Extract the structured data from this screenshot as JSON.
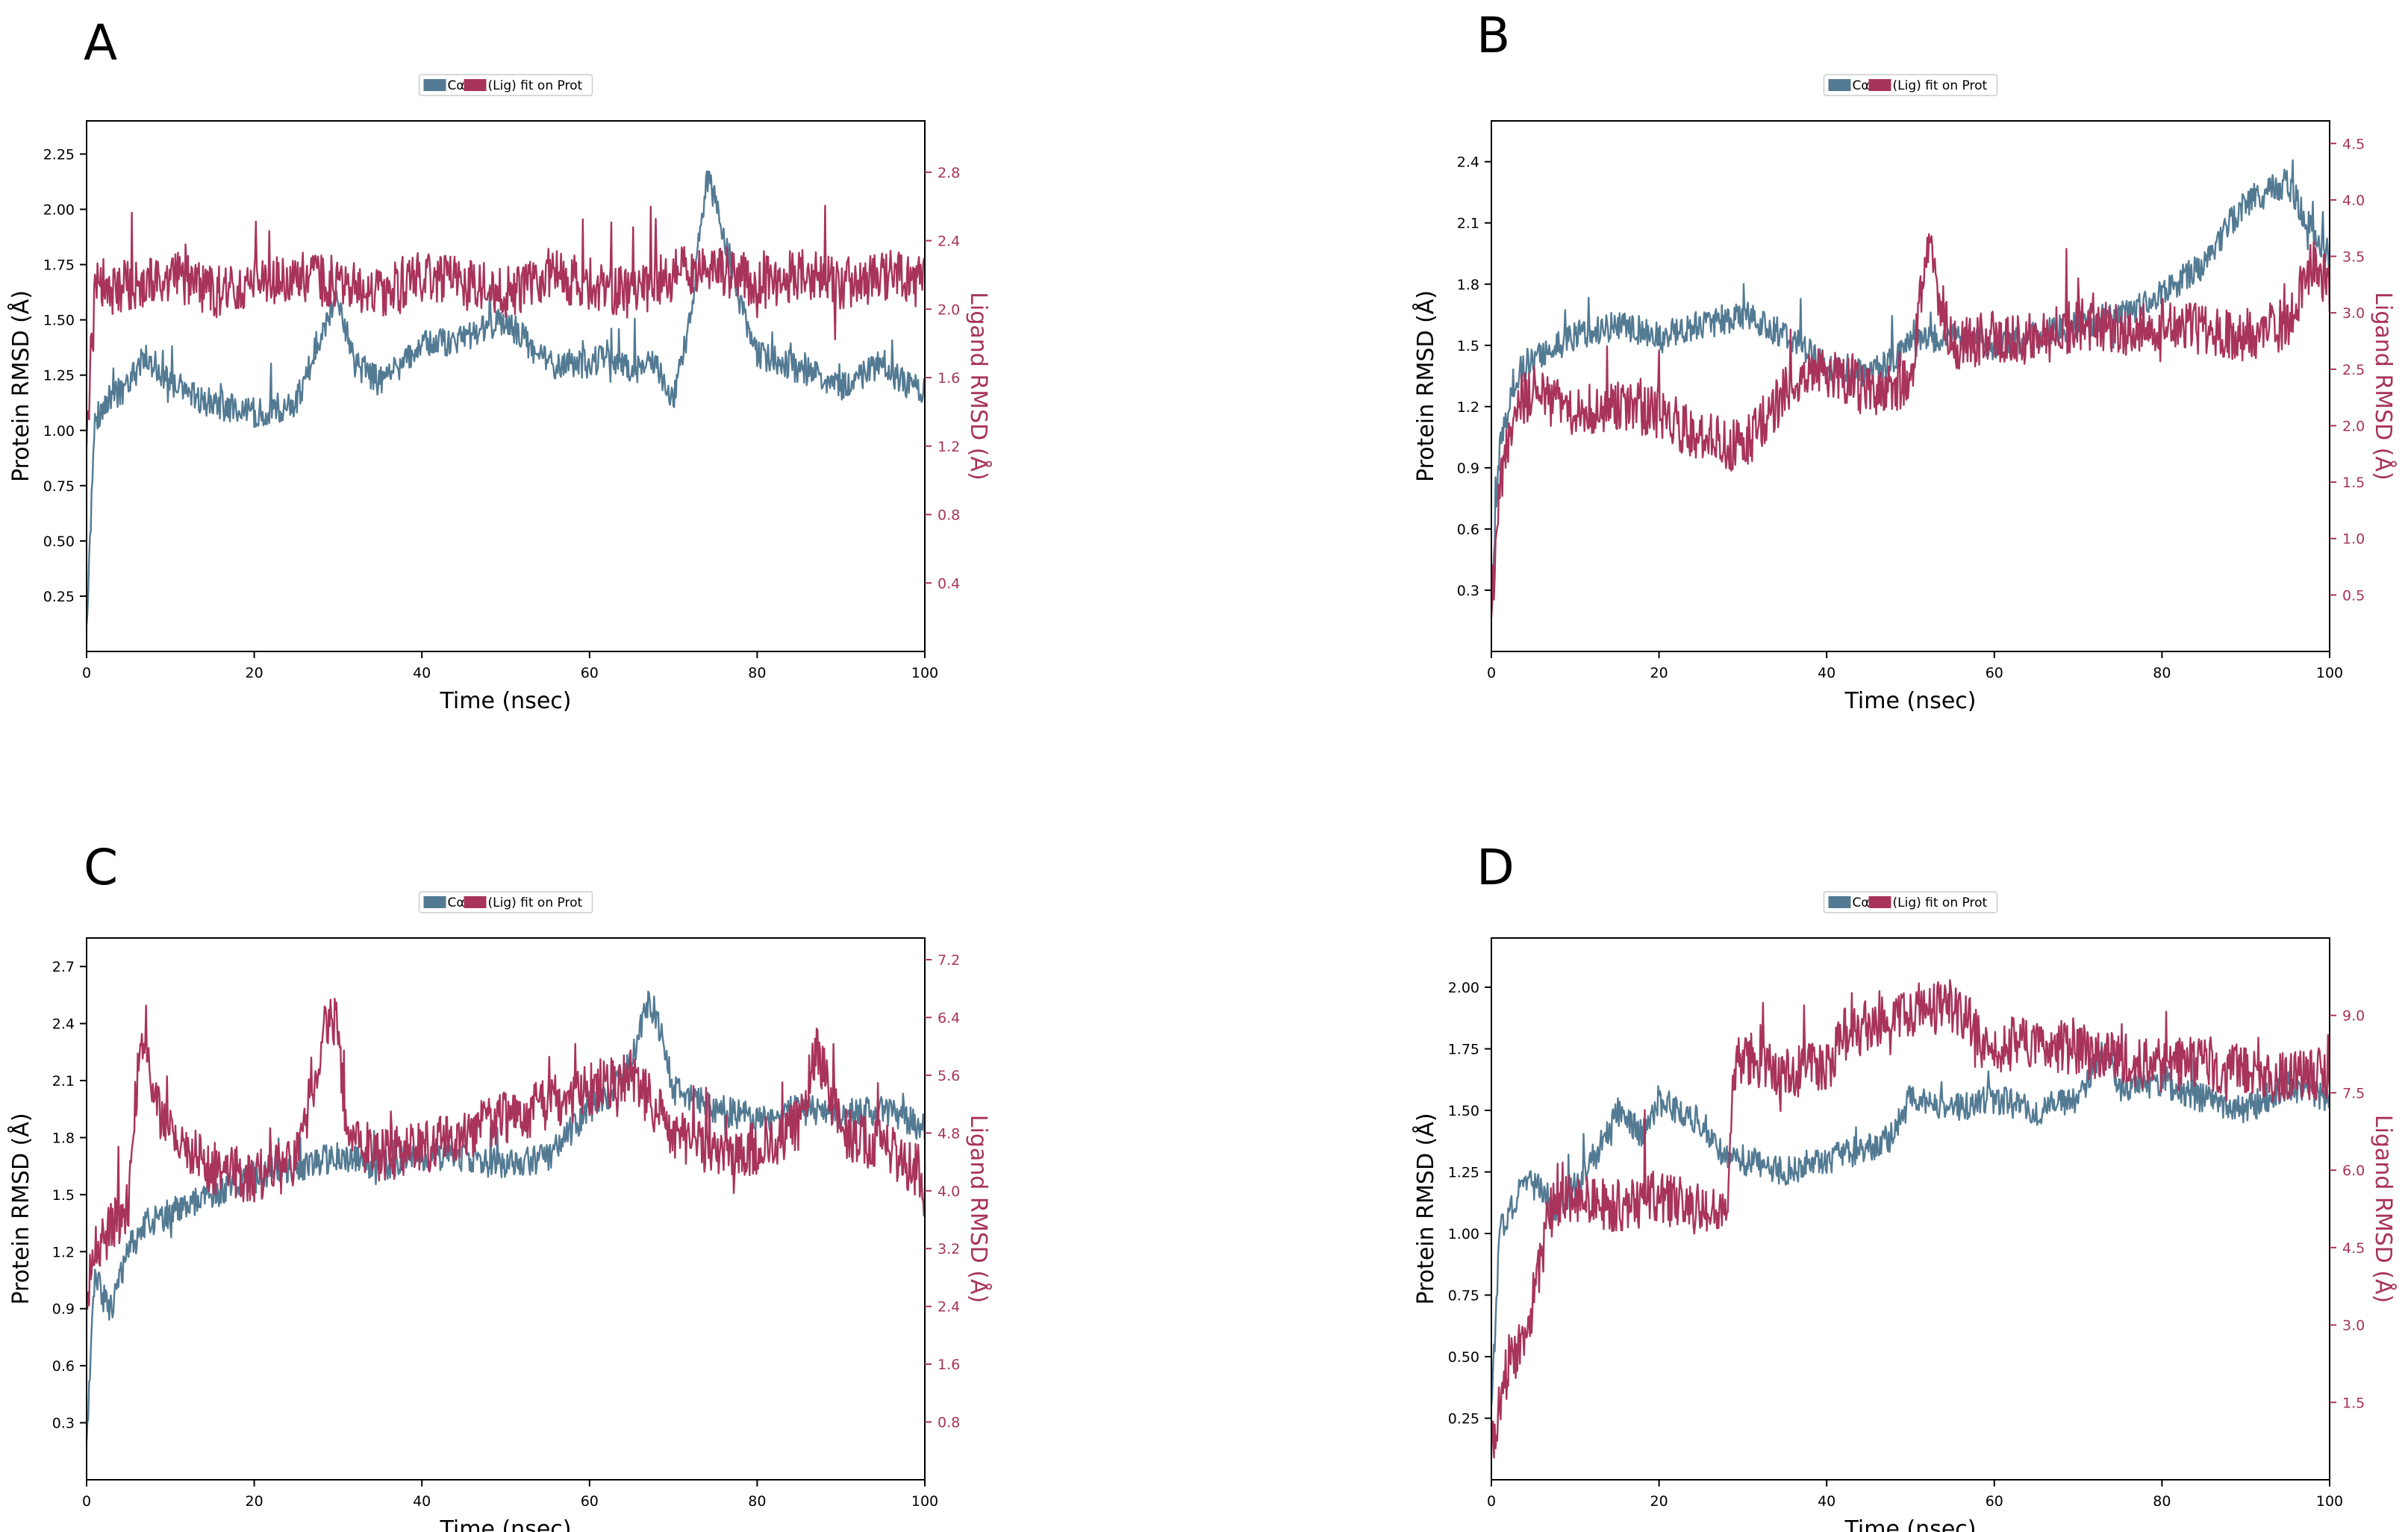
{
  "colors": {
    "protein": "#537a93",
    "ligand": "#a8335b",
    "ligand_text": "#a8335b"
  },
  "chart_data": [
    {
      "panel": "A",
      "type": "line",
      "legend": {
        "entries": [
          "Cα",
          "(Lig) fit on Prot"
        ],
        "placement": "top-center"
      },
      "xlabel": "Time (nsec)",
      "ylabel_left": "Protein RMSD (Å)",
      "ylabel_right": "Ligand RMSD (Å)",
      "xlim": [
        0,
        100
      ],
      "ylim_left": [
        0.0,
        2.4
      ],
      "ylim_right": [
        0.0,
        3.1
      ],
      "x_ticks": [
        0,
        20,
        40,
        60,
        80,
        100
      ],
      "y_ticks_left": [
        0.25,
        0.5,
        0.75,
        1.0,
        1.25,
        1.5,
        1.75,
        2.0,
        2.25
      ],
      "y_ticks_left_labels": [
        "0.25",
        "0.50",
        "0.75",
        "1.00",
        "1.25",
        "1.50",
        "1.75",
        "2.00",
        "2.25"
      ],
      "y_ticks_right": [
        0.4,
        0.8,
        1.2,
        1.6,
        2.0,
        2.4,
        2.8
      ],
      "y_ticks_right_labels": [
        "0.4",
        "0.8",
        "1.2",
        "1.6",
        "2.0",
        "2.4",
        "2.8"
      ],
      "series": [
        {
          "name": "Cα",
          "axis": "left",
          "x": [
            0,
            1,
            3,
            5,
            7,
            10,
            15,
            20,
            25,
            28,
            30,
            32,
            35,
            40,
            45,
            50,
            55,
            60,
            62,
            65,
            68,
            70,
            72,
            74,
            75,
            77,
            80,
            85,
            90,
            95,
            98,
            100
          ],
          "y": [
            0.12,
            1.05,
            1.15,
            1.2,
            1.35,
            1.2,
            1.12,
            1.08,
            1.12,
            1.45,
            1.6,
            1.3,
            1.22,
            1.38,
            1.42,
            1.5,
            1.3,
            1.3,
            1.35,
            1.28,
            1.3,
            1.15,
            1.5,
            2.15,
            2.05,
            1.7,
            1.35,
            1.28,
            1.2,
            1.3,
            1.2,
            1.18
          ]
        },
        {
          "name": "(Lig) fit on Prot",
          "axis": "right",
          "x": [
            0,
            1,
            3,
            5,
            10,
            15,
            20,
            25,
            30,
            35,
            40,
            45,
            50,
            55,
            60,
            65,
            70,
            75,
            80,
            85,
            90,
            95,
            100
          ],
          "y": [
            1.2,
            2.2,
            2.1,
            2.15,
            2.2,
            2.1,
            2.15,
            2.2,
            2.15,
            2.1,
            2.2,
            2.15,
            2.1,
            2.2,
            2.15,
            2.1,
            2.2,
            2.25,
            2.15,
            2.2,
            2.15,
            2.2,
            2.15
          ]
        }
      ]
    },
    {
      "panel": "B",
      "type": "line",
      "legend": {
        "entries": [
          "Cα",
          "(Lig) fit on Prot"
        ],
        "placement": "top-center"
      },
      "xlabel": "Time (nsec)",
      "ylabel_left": "Protein RMSD (Å)",
      "ylabel_right": "Ligand RMSD (Å)",
      "xlim": [
        0,
        100
      ],
      "ylim_left": [
        0.0,
        2.6
      ],
      "ylim_right": [
        0.0,
        4.7
      ],
      "x_ticks": [
        0,
        20,
        40,
        60,
        80,
        100
      ],
      "y_ticks_left": [
        0.3,
        0.6,
        0.9,
        1.2,
        1.5,
        1.8,
        2.1,
        2.4
      ],
      "y_ticks_left_labels": [
        "0.3",
        "0.6",
        "0.9",
        "1.2",
        "1.5",
        "1.8",
        "2.1",
        "2.4"
      ],
      "y_ticks_right": [
        0.5,
        1.0,
        1.5,
        2.0,
        2.5,
        3.0,
        3.5,
        4.0,
        4.5
      ],
      "y_ticks_right_labels": [
        "0.5",
        "1.0",
        "1.5",
        "2.0",
        "2.5",
        "3.0",
        "3.5",
        "4.0",
        "4.5"
      ],
      "series": [
        {
          "name": "Cα",
          "axis": "left",
          "x": [
            0,
            1,
            3,
            5,
            8,
            10,
            15,
            20,
            25,
            30,
            35,
            40,
            45,
            50,
            55,
            60,
            65,
            70,
            75,
            80,
            85,
            88,
            90,
            95,
            98,
            100
          ],
          "y": [
            0.2,
            1.0,
            1.35,
            1.45,
            1.5,
            1.55,
            1.6,
            1.55,
            1.6,
            1.65,
            1.55,
            1.4,
            1.35,
            1.5,
            1.55,
            1.5,
            1.55,
            1.6,
            1.65,
            1.75,
            1.9,
            2.1,
            2.2,
            2.3,
            2.05,
            1.95
          ]
        },
        {
          "name": "(Lig) fit on Prot",
          "axis": "right",
          "x": [
            0,
            1,
            3,
            5,
            10,
            15,
            20,
            25,
            30,
            35,
            40,
            45,
            50,
            52,
            55,
            60,
            65,
            70,
            75,
            80,
            85,
            90,
            95,
            98,
            100
          ],
          "y": [
            0.3,
            1.5,
            2.2,
            2.3,
            2.1,
            2.2,
            2.1,
            1.9,
            1.8,
            2.3,
            2.5,
            2.3,
            2.4,
            3.6,
            2.7,
            2.8,
            2.75,
            2.9,
            2.85,
            2.9,
            2.85,
            2.8,
            2.9,
            3.5,
            3.2
          ]
        }
      ]
    },
    {
      "panel": "C",
      "type": "line",
      "legend": {
        "entries": [
          "Cα",
          "(Lig) fit on Prot"
        ],
        "placement": "top-center"
      },
      "xlabel": "Time (nsec)",
      "ylabel_left": "Protein RMSD (Å)",
      "ylabel_right": "Ligand RMSD (Å)",
      "xlim": [
        0,
        100
      ],
      "ylim_left": [
        0.0,
        2.85
      ],
      "ylim_right": [
        0.0,
        7.5
      ],
      "x_ticks": [
        0,
        20,
        40,
        60,
        80,
        100
      ],
      "y_ticks_left": [
        0.3,
        0.6,
        0.9,
        1.2,
        1.5,
        1.8,
        2.1,
        2.4,
        2.7
      ],
      "y_ticks_left_labels": [
        "0.3",
        "0.6",
        "0.9",
        "1.2",
        "1.5",
        "1.8",
        "2.1",
        "2.4",
        "2.7"
      ],
      "y_ticks_right": [
        0.8,
        1.6,
        2.4,
        3.2,
        4.0,
        4.8,
        5.6,
        6.4,
        7.2
      ],
      "y_ticks_right_labels": [
        "0.8",
        "1.6",
        "2.4",
        "3.2",
        "4.0",
        "4.8",
        "5.6",
        "6.4",
        "7.2"
      ],
      "series": [
        {
          "name": "Cα",
          "axis": "left",
          "x": [
            0,
            1,
            2,
            3,
            5,
            7,
            10,
            15,
            20,
            25,
            30,
            35,
            40,
            45,
            50,
            55,
            60,
            63,
            65,
            67,
            68,
            70,
            75,
            80,
            85,
            90,
            95,
            100
          ],
          "y": [
            0.2,
            1.1,
            0.95,
            0.9,
            1.2,
            1.35,
            1.4,
            1.5,
            1.6,
            1.65,
            1.7,
            1.65,
            1.7,
            1.7,
            1.65,
            1.7,
            1.95,
            2.05,
            2.2,
            2.5,
            2.45,
            2.05,
            1.95,
            1.9,
            1.95,
            1.92,
            1.95,
            1.85
          ]
        },
        {
          "name": "(Lig) fit on Prot",
          "axis": "right",
          "x": [
            0,
            1,
            3,
            5,
            6,
            7,
            8,
            10,
            15,
            20,
            25,
            29,
            30,
            31,
            33,
            35,
            40,
            45,
            50,
            55,
            60,
            65,
            70,
            75,
            80,
            85,
            87,
            90,
            95,
            100
          ],
          "y": [
            2.5,
            3.2,
            3.5,
            3.8,
            5.5,
            6.3,
            5.2,
            4.8,
            4.3,
            4.2,
            4.4,
            6.5,
            6.2,
            4.7,
            4.6,
            4.5,
            4.6,
            4.8,
            5.0,
            5.2,
            5.4,
            5.6,
            4.8,
            4.5,
            4.6,
            4.9,
            6.0,
            4.8,
            4.6,
            4.2
          ]
        }
      ]
    },
    {
      "panel": "D",
      "type": "line",
      "legend": {
        "entries": [
          "Cα",
          "(Lig) fit on Prot"
        ],
        "placement": "top-center"
      },
      "xlabel": "Time (nsec)",
      "ylabel_left": "Protein RMSD (Å)",
      "ylabel_right": "Ligand RMSD (Å)",
      "xlim": [
        0,
        100
      ],
      "ylim_left": [
        0.0,
        2.2
      ],
      "ylim_right": [
        0.0,
        10.5
      ],
      "x_ticks": [
        0,
        20,
        40,
        60,
        80,
        100
      ],
      "y_ticks_left": [
        0.25,
        0.5,
        0.75,
        1.0,
        1.25,
        1.5,
        1.75,
        2.0
      ],
      "y_ticks_left_labels": [
        "0.25",
        "0.50",
        "0.75",
        "1.00",
        "1.25",
        "1.50",
        "1.75",
        "2.00"
      ],
      "y_ticks_right": [
        1.5,
        3.0,
        4.5,
        6.0,
        7.5,
        9.0
      ],
      "y_ticks_right_labels": [
        "1.5",
        "3.0",
        "4.5",
        "6.0",
        "7.5",
        "9.0"
      ],
      "series": [
        {
          "name": "Cα",
          "axis": "left",
          "x": [
            0,
            1,
            3,
            5,
            8,
            10,
            13,
            15,
            18,
            20,
            25,
            28,
            30,
            35,
            40,
            45,
            48,
            50,
            55,
            60,
            65,
            70,
            73,
            75,
            80,
            85,
            90,
            95,
            100
          ],
          "y": [
            0.3,
            1.0,
            1.15,
            1.2,
            1.1,
            1.2,
            1.35,
            1.5,
            1.4,
            1.55,
            1.45,
            1.3,
            1.3,
            1.25,
            1.3,
            1.35,
            1.4,
            1.55,
            1.5,
            1.55,
            1.5,
            1.55,
            1.75,
            1.6,
            1.6,
            1.55,
            1.5,
            1.6,
            1.55
          ]
        },
        {
          "name": "(Lig) fit on Prot",
          "axis": "right",
          "x": [
            0,
            1,
            2,
            4,
            5,
            7,
            9,
            10,
            15,
            20,
            25,
            28,
            29,
            30,
            35,
            40,
            42,
            45,
            50,
            55,
            57,
            58,
            60,
            65,
            70,
            75,
            80,
            85,
            90,
            95,
            100
          ],
          "y": [
            0.5,
            1.5,
            2.2,
            2.8,
            3.5,
            5.2,
            5.5,
            5.4,
            5.3,
            5.5,
            5.2,
            5.1,
            8.0,
            8.2,
            7.9,
            8.0,
            8.6,
            8.8,
            9.1,
            9.2,
            9.0,
            8.5,
            8.4,
            8.5,
            8.3,
            8.2,
            8.0,
            8.1,
            7.9,
            7.8,
            7.9
          ]
        }
      ]
    }
  ]
}
